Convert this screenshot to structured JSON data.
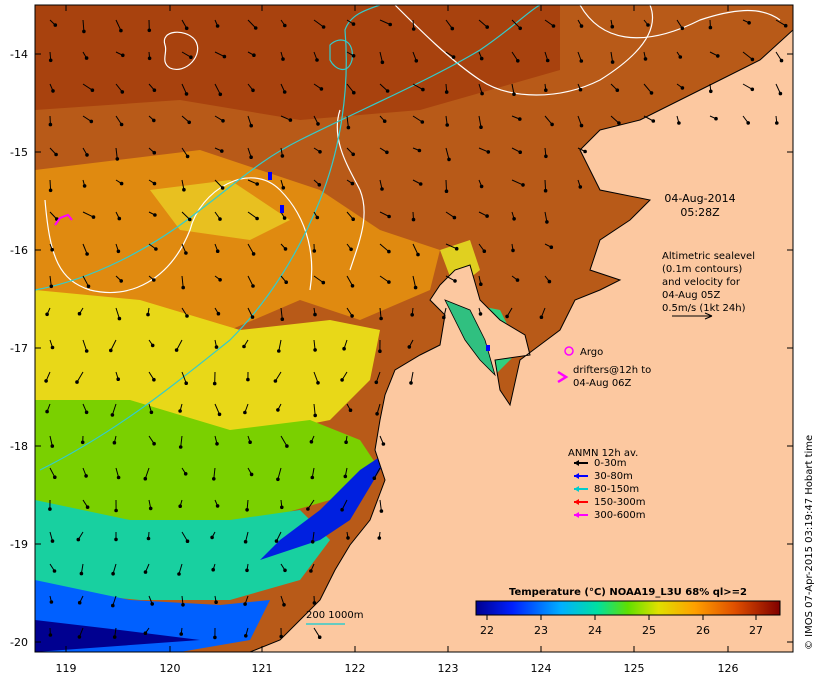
{
  "map": {
    "lon_ticks": [
      "119",
      "120",
      "121",
      "122",
      "123",
      "124",
      "125",
      "126"
    ],
    "lat_ticks": [
      "-14",
      "-15",
      "-16",
      "-17",
      "-18",
      "-19",
      "-20"
    ],
    "date_line1": "04-Aug-2014",
    "date_line2": "05:28Z",
    "altimetry_lines": [
      "Altimetric sealevel",
      "(0.1m contours)",
      "and velocity for",
      "04-Aug 05Z",
      "0.5m/s (1kt 24h)"
    ],
    "argo_label": "Argo",
    "drifters_line1": "drifters@12h to",
    "drifters_line2": "04-Aug 06Z",
    "anmn_title": "ANMN 12h av.",
    "anmn_items": [
      {
        "label": "0-30m",
        "color": "#000000"
      },
      {
        "label": "30-80m",
        "color": "#0000ff"
      },
      {
        "label": "80-150m",
        "color": "#00cccc"
      },
      {
        "label": "150-300m",
        "color": "#ff0000"
      },
      {
        "label": "300-600m",
        "color": "#ff00ff"
      }
    ],
    "isobath_label": "200  1000m",
    "colorbar_title": "Temperature (°C) NOAA19_L3U 68% ql>=2",
    "colorbar_ticks": [
      "22",
      "23",
      "24",
      "25",
      "26",
      "27"
    ],
    "credit": "© IMOS 07-Apr-2015 03:19:47 Hobart time",
    "colors": {
      "land": "#fcc8a0",
      "contour": "#ffffff",
      "isobath": "#33cccc",
      "argo": "#ff00ff"
    }
  }
}
